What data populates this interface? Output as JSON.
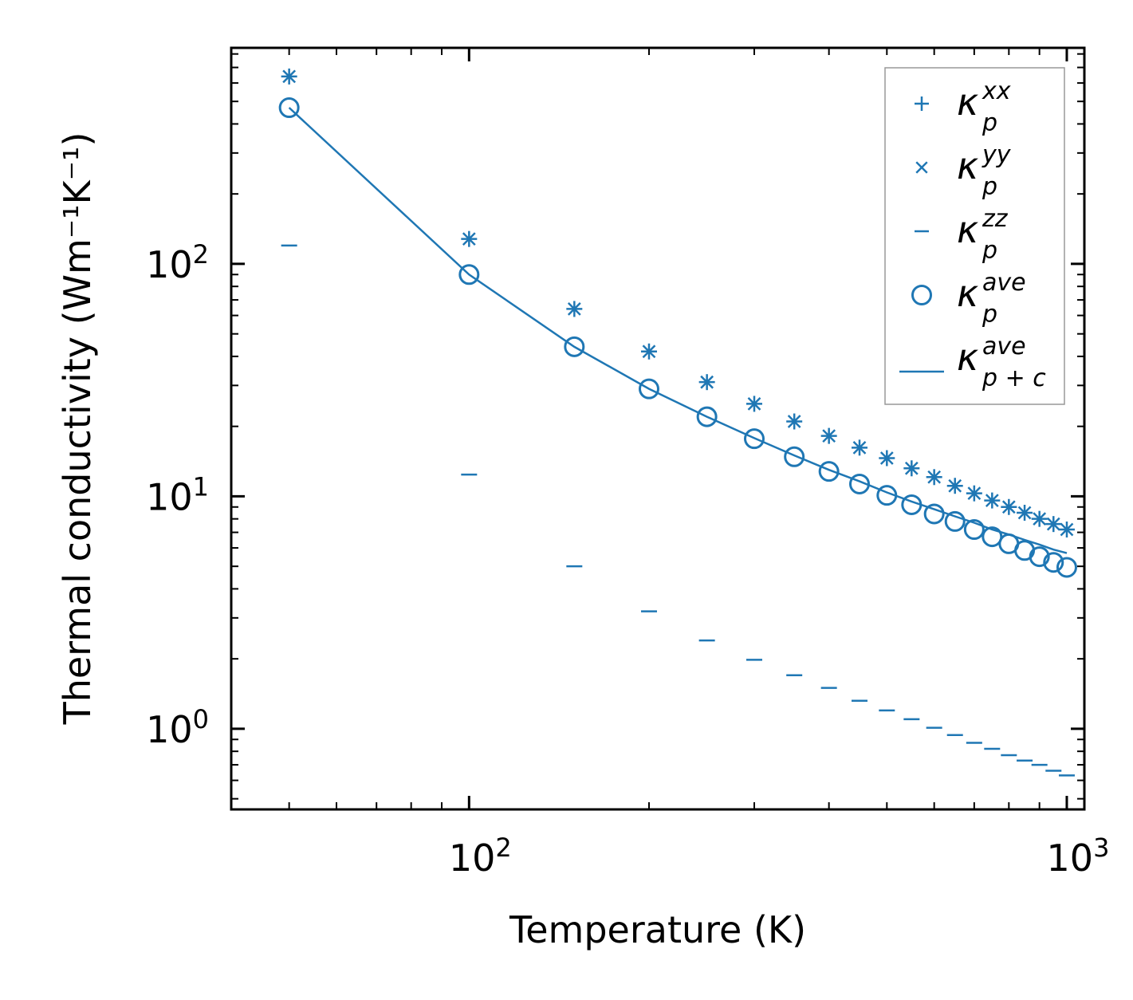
{
  "chart_data": {
    "type": "scatter",
    "scale": {
      "x": "log",
      "y": "log"
    },
    "xlabel": "Temperature (K)",
    "ylabel": "Thermal conductivity (Wm⁻¹K⁻¹)",
    "xlim": [
      40,
      1070
    ],
    "ylim": [
      0.45,
      850
    ],
    "x_ticks": [
      {
        "value": 100,
        "base": "10",
        "exp": "2"
      },
      {
        "value": 1000,
        "base": "10",
        "exp": "3"
      }
    ],
    "y_ticks": [
      {
        "value": 1,
        "base": "10",
        "exp": "0"
      },
      {
        "value": 10,
        "base": "10",
        "exp": "1"
      },
      {
        "value": 100,
        "base": "10",
        "exp": "2"
      }
    ],
    "color": "#1f77b4",
    "legend_position": "top-right",
    "x": [
      50,
      100,
      150,
      200,
      250,
      300,
      350,
      400,
      450,
      500,
      550,
      600,
      650,
      700,
      750,
      800,
      850,
      900,
      950,
      1000
    ],
    "series": [
      {
        "name": "kappa_p^xx",
        "symbol": "κ",
        "sub": "p",
        "sup": "xx",
        "marker": "plus",
        "values": [
          640,
          128,
          64,
          42,
          31,
          25,
          21,
          18.2,
          16.2,
          14.6,
          13.2,
          12.1,
          11.1,
          10.3,
          9.6,
          9.0,
          8.5,
          8.0,
          7.6,
          7.2
        ]
      },
      {
        "name": "kappa_p^yy",
        "symbol": "κ",
        "sub": "p",
        "sup": "yy",
        "marker": "x",
        "values": [
          640,
          128,
          64,
          42,
          31,
          25,
          21,
          18.2,
          16.2,
          14.6,
          13.2,
          12.1,
          11.1,
          10.3,
          9.6,
          9.0,
          8.5,
          8.0,
          7.6,
          7.2
        ]
      },
      {
        "name": "kappa_p^zz",
        "symbol": "κ",
        "sub": "p",
        "sup": "zz",
        "marker": "dash",
        "values": [
          120,
          12.4,
          5.0,
          3.2,
          2.4,
          1.98,
          1.7,
          1.5,
          1.32,
          1.2,
          1.1,
          1.01,
          0.94,
          0.87,
          0.82,
          0.77,
          0.73,
          0.7,
          0.66,
          0.63
        ]
      },
      {
        "name": "kappa_p^ave",
        "symbol": "κ",
        "sub": "p",
        "sup": "ave",
        "marker": "circle",
        "values": [
          470,
          90,
          44,
          29,
          22,
          17.7,
          14.8,
          12.8,
          11.3,
          10.1,
          9.2,
          8.4,
          7.8,
          7.2,
          6.7,
          6.25,
          5.85,
          5.5,
          5.2,
          4.95
        ]
      },
      {
        "name": "kappa_p+c^ave",
        "symbol": "κ",
        "sub": "p + c",
        "sup": "ave",
        "marker": "line",
        "values": [
          470,
          90,
          44,
          29,
          22,
          17.8,
          15.0,
          13.0,
          11.6,
          10.4,
          9.5,
          8.8,
          8.2,
          7.7,
          7.2,
          6.85,
          6.5,
          6.2,
          5.9,
          5.7
        ]
      }
    ]
  }
}
